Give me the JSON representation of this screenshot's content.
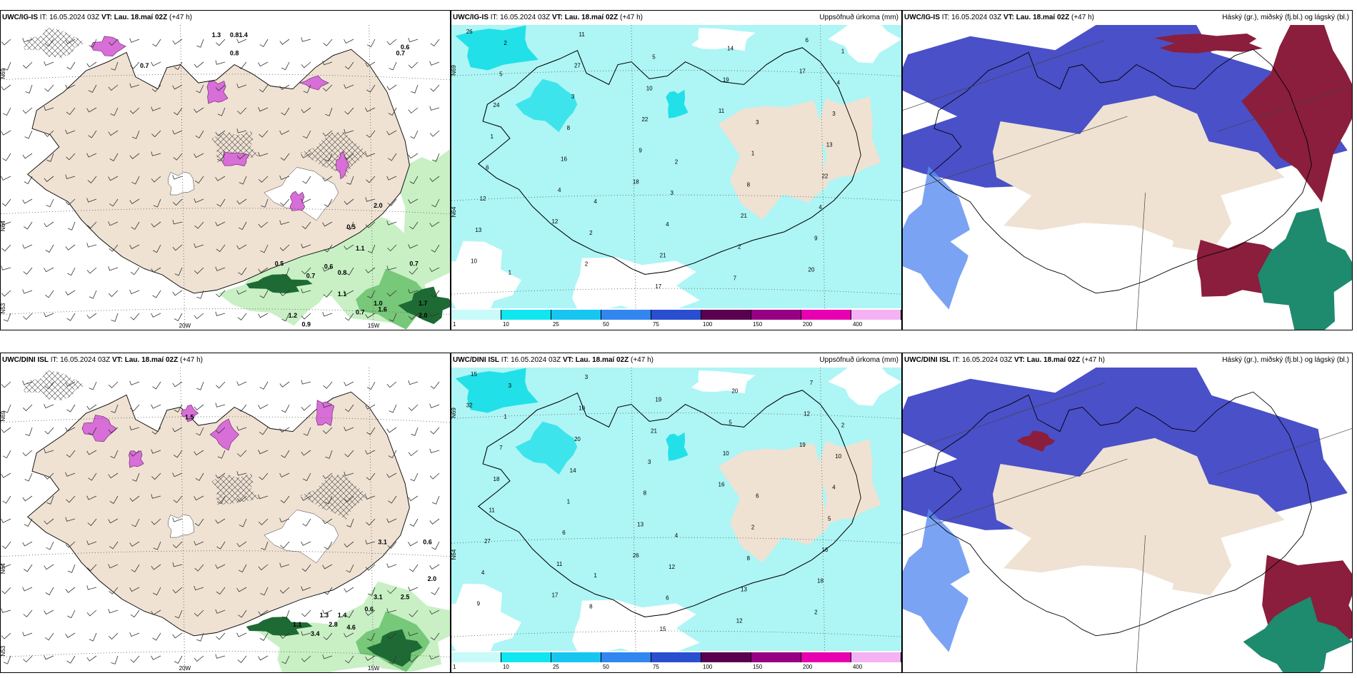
{
  "colors": {
    "land": "#efe2d3",
    "green_light": "#c8f0c4",
    "green_mid": "#78c87a",
    "green_dark": "#1e6a34",
    "magenta": "#d86ed8",
    "cyan_light": "#aef5f5",
    "cyan": "#22e0e8",
    "cloud_blue": "#4a50c8",
    "cloud_red": "#8a1e3c",
    "cloud_green": "#1e8a6e"
  },
  "rows": [
    {
      "model": "UWC/IG-IS",
      "wind": {
        "it": "IT: 16.05.2024 03Z",
        "vt": "VT: Lau. 18.maí 02Z",
        "lead": "(+47 h)",
        "labels": [
          "0.7",
          "0.8",
          "1.3",
          "1.4",
          "0.8",
          "0.7",
          "0.6",
          "0.5",
          "0.5",
          "0.6",
          "0.7",
          "0.8",
          "1.1",
          "0.7",
          "1.0",
          "1.2",
          "0.9",
          "1.6",
          "1.7",
          "2.0",
          "0.7",
          "1.1",
          "2.0"
        ],
        "lat_labels": [
          "N69",
          "N64",
          "N53"
        ],
        "lon_labels": [
          "20W",
          "15W"
        ]
      },
      "precip": {
        "it": "IT: 16.05.2024 03Z",
        "vt": "VT: Lau. 18.maí 02Z",
        "lead": "(+47 h)",
        "title": "Uppsöfnuð úrkoma (mm)",
        "values": [
          "26",
          "18",
          "17",
          "12",
          "11",
          "10",
          "9",
          "6",
          "4",
          "19",
          "13",
          "22",
          "20",
          "16",
          "14",
          "12",
          "10",
          "9",
          "8",
          "7",
          "6",
          "5",
          "4",
          "3",
          "2",
          "1",
          "17",
          "22",
          "27",
          "21",
          "24",
          "21",
          "13",
          "11",
          "8",
          "5",
          "4",
          "3",
          "2",
          "1",
          "2",
          "3",
          "4",
          "2",
          "3",
          "1",
          "2",
          "1",
          "4"
        ],
        "lat_labels": [
          "N69",
          "N64"
        ]
      },
      "cloud": {
        "it": "IT: 16.05.2024 03Z",
        "vt": "VT: Lau. 18.maí 02Z",
        "lead": "(+47 h)",
        "title": "Háský (gr.), miðský (fj.bl.) og lágský (bl.)"
      }
    },
    {
      "model": "UWC/DINI ISL",
      "wind": {
        "it": "IT: 16.05.2024 03Z",
        "vt": "VT: Lau. 18.maí 02Z",
        "lead": "(+47 h)",
        "labels": [
          "1.5",
          "3.1",
          "0.6",
          "2.0",
          "2.5",
          "3.1",
          "0.6",
          "1.3",
          "1.4",
          "2.8",
          "3.4",
          "4.6",
          "1.1"
        ],
        "lat_labels": [
          "N69",
          "N64",
          "N53"
        ],
        "lon_labels": [
          "20W",
          "15W"
        ]
      },
      "precip": {
        "it": "IT: 16.05.2024 03Z",
        "vt": "VT: Lau. 18.maí 02Z",
        "lead": "(+47 h)",
        "title": "Uppsöfnuð úrkoma (mm)",
        "values": [
          "32",
          "26",
          "19",
          "17",
          "16",
          "15",
          "13",
          "12",
          "11",
          "10",
          "9",
          "8",
          "7",
          "6",
          "5",
          "4",
          "3",
          "2",
          "1",
          "20",
          "27",
          "21",
          "18",
          "14",
          "12",
          "11",
          "19",
          "16",
          "20",
          "13",
          "18",
          "15",
          "5",
          "10",
          "8",
          "7",
          "6",
          "4",
          "3",
          "2",
          "1",
          "12",
          "10",
          "8",
          "6",
          "3",
          "4",
          "2",
          "1"
        ],
        "lat_labels": [
          "N69",
          "N64"
        ]
      },
      "cloud": {
        "it": "IT: 16.05.2024 03Z",
        "vt": "VT: Lau. 18.maí 02Z",
        "lead": "(+47 h)",
        "title": "Háský (gr.), miðský (fj.bl.) og lágský (bl.)"
      }
    }
  ],
  "colorbar": {
    "ticks": [
      "1",
      "10",
      "25",
      "50",
      "75",
      "100",
      "150",
      "200",
      "400"
    ],
    "colors": [
      "#c8fafa",
      "#10e6f0",
      "#16c6f0",
      "#3286f0",
      "#2a4ed0",
      "#5a0050",
      "#960082",
      "#e800b0",
      "#f4b2f4"
    ]
  }
}
